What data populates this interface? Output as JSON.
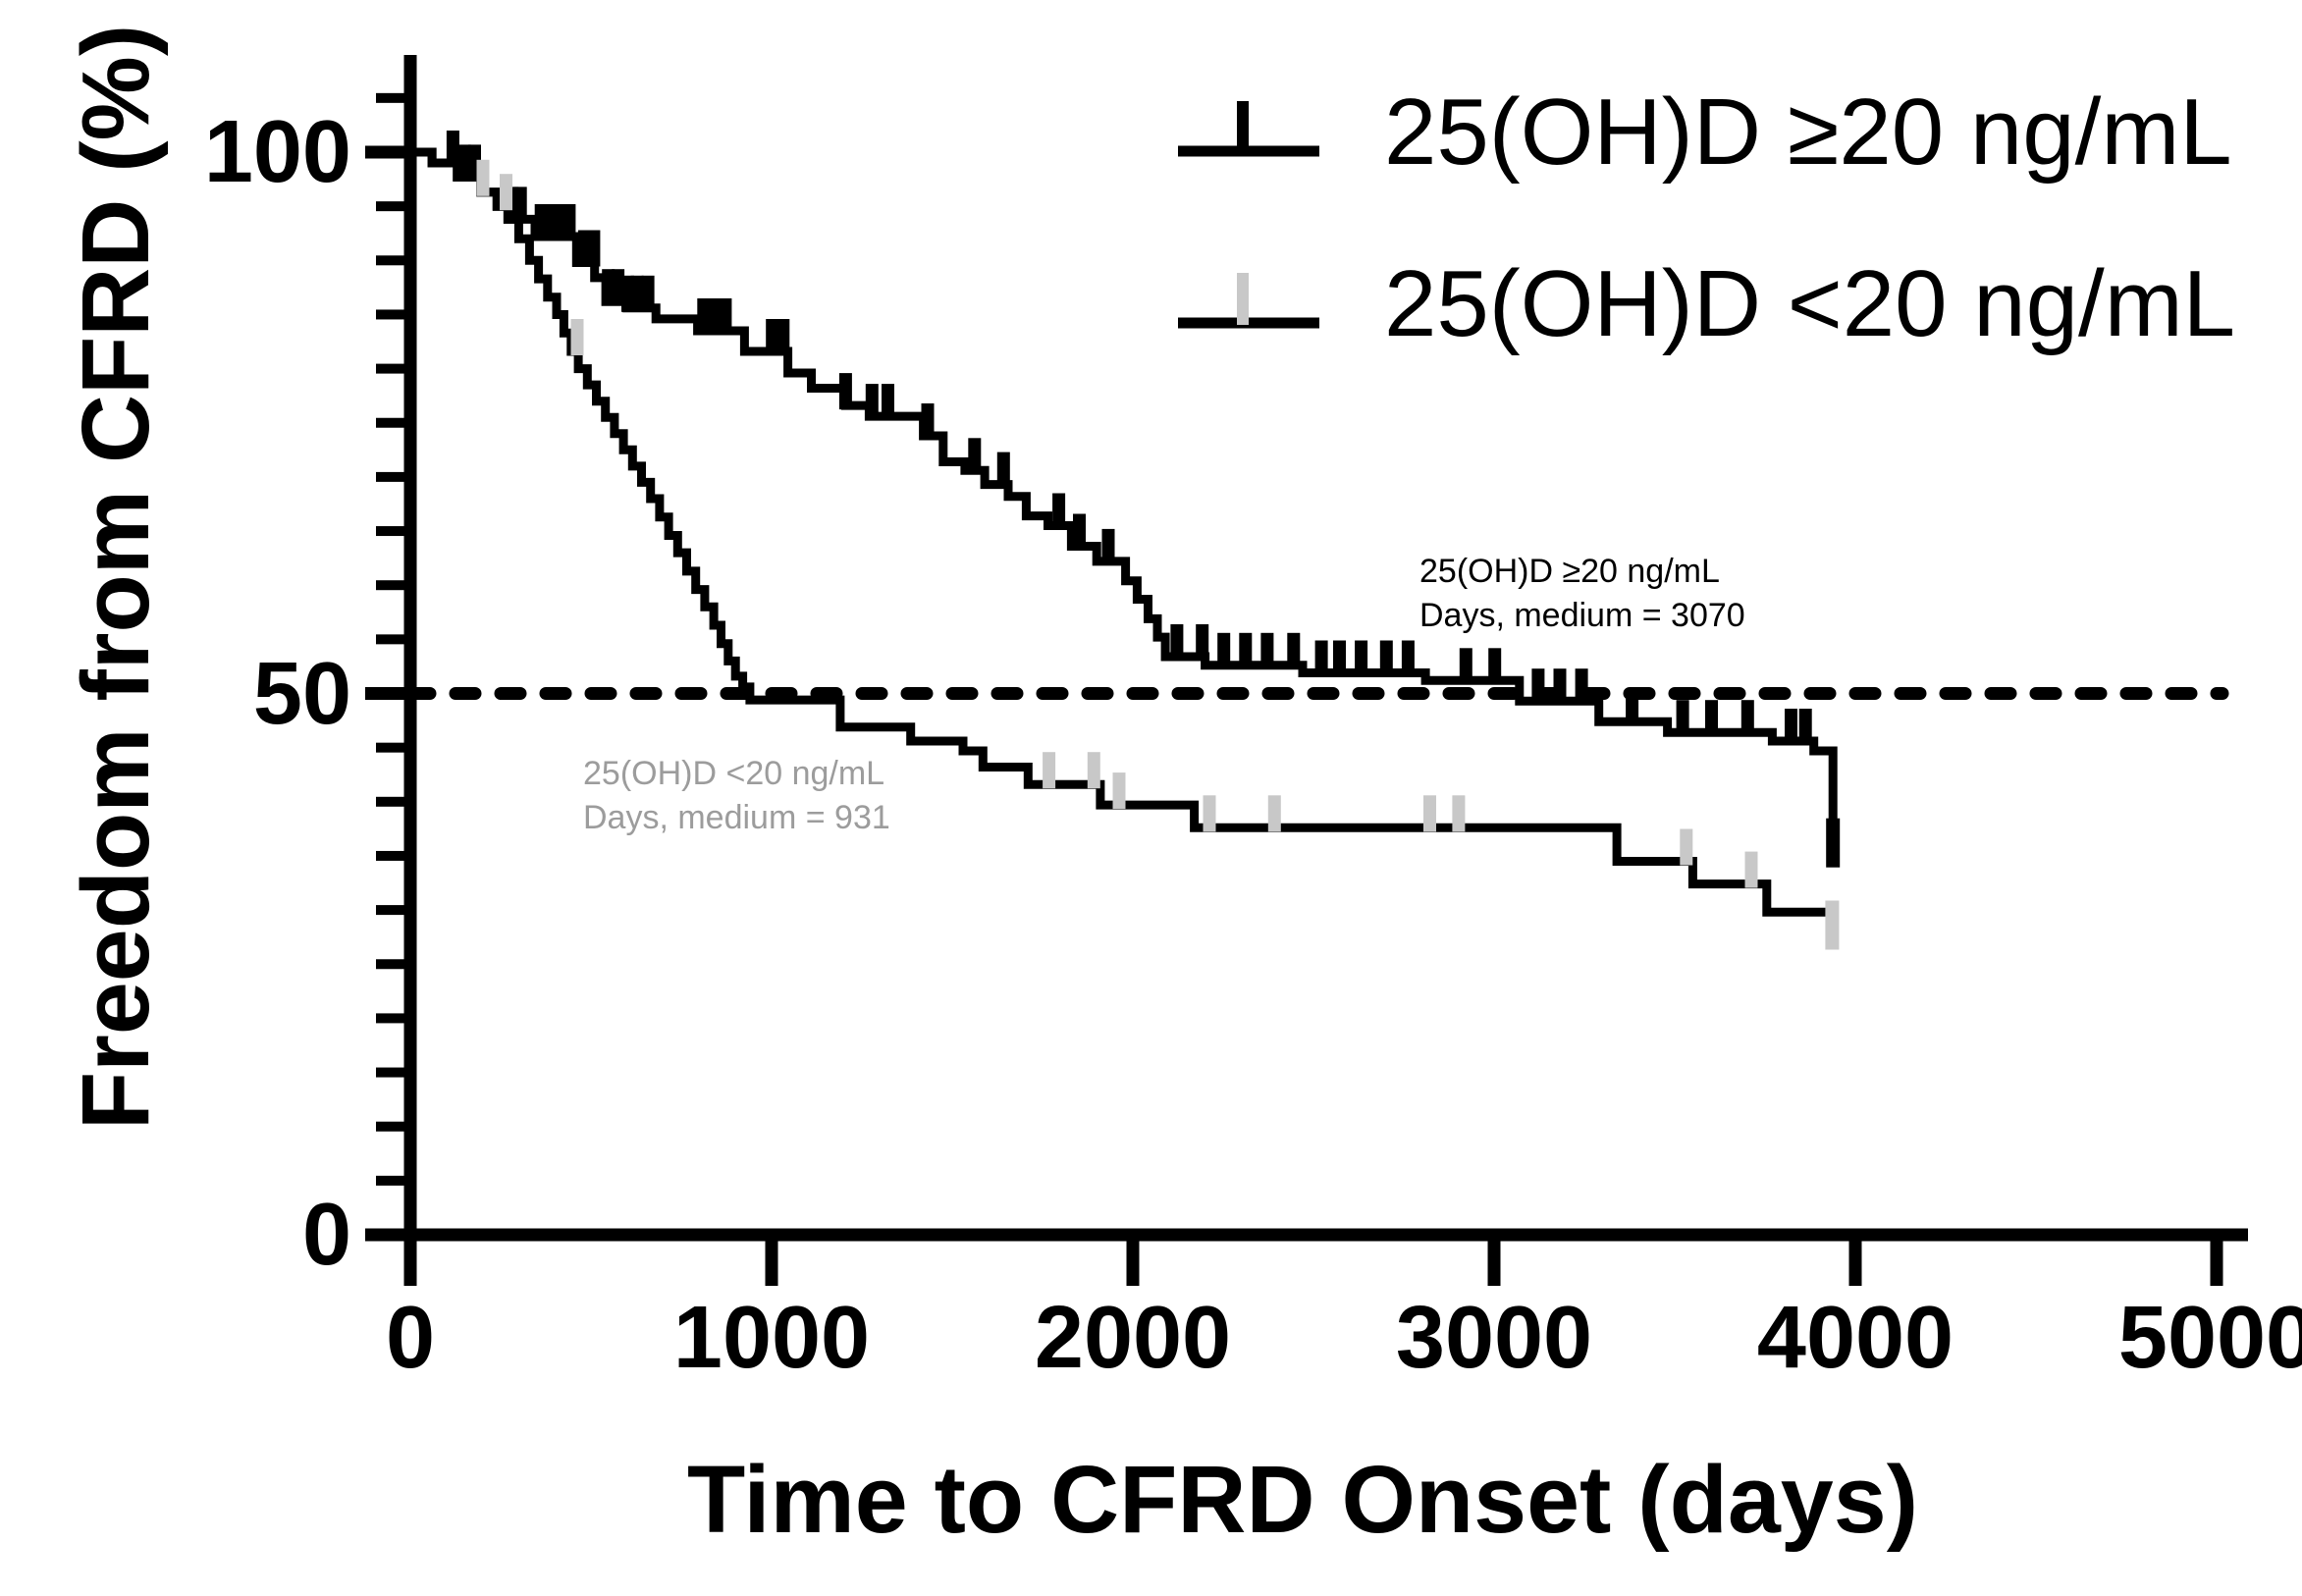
{
  "figure": {
    "background": "#ffffff",
    "y_axis": {
      "title": "Freedom from CFRD (%)",
      "tick_labels": [
        "100",
        "50",
        "0"
      ],
      "tick_values": [
        100,
        50,
        0
      ],
      "minor_tick_values": [
        5,
        10,
        15,
        20,
        25,
        30,
        35,
        40,
        45,
        55,
        60,
        65,
        70,
        75,
        80,
        85,
        90,
        95,
        105
      ],
      "range_pct": [
        0,
        105
      ]
    },
    "x_axis": {
      "title": "Time to CFRD Onset (days)",
      "tick_labels": [
        "0",
        "1000",
        "2000",
        "3000",
        "4000",
        "5000"
      ],
      "tick_values": [
        0,
        1000,
        2000,
        3000,
        4000,
        5000
      ],
      "range_days": [
        0,
        5000
      ]
    },
    "reference_line": {
      "value_pct": 50,
      "style": "dotted",
      "color": "#000000"
    },
    "legend": {
      "items": [
        {
          "label": "25(OH)D ≥20 ng/mL",
          "line_color": "#000000",
          "censor_color": "#000000"
        },
        {
          "label": "25(OH)D <20 ng/mL",
          "line_color": "#000000",
          "censor_color": "#c8c8c8"
        }
      ]
    },
    "annotations": [
      {
        "line1": "25(OH)D ≥20 ng/mL",
        "line2": "Days, medium = 3070",
        "color": "#000000"
      },
      {
        "line1": "25(OH)D <20 ng/mL",
        "line2": "Days, medium = 931",
        "color": "#9c9c9c"
      }
    ]
  },
  "chart_data": {
    "type": "line",
    "subtype": "kaplan_meier_step",
    "title": "",
    "xlabel": "Time to CFRD Onset (days)",
    "ylabel": "Freedom from CFRD (%)",
    "xlim": [
      0,
      5000
    ],
    "ylim": [
      0,
      100
    ],
    "grid": false,
    "legend_position": "top-right",
    "reference_line_pct": 50,
    "medians_days": {
      "ge20": 3070,
      "lt20": 931
    },
    "series": [
      {
        "id": "lt20",
        "name": "25(OH)D <20 ng/mL",
        "color": "#000000",
        "censor_color": "#c8c8c8",
        "steps": [
          [
            0,
            100
          ],
          [
            60,
            99
          ],
          [
            130,
            97.7
          ],
          [
            195,
            96.3
          ],
          [
            240,
            95
          ],
          [
            270,
            93.8
          ],
          [
            300,
            92
          ],
          [
            330,
            90
          ],
          [
            355,
            88.3
          ],
          [
            380,
            86.6
          ],
          [
            405,
            85
          ],
          [
            425,
            83.3
          ],
          [
            445,
            81.6
          ],
          [
            465,
            80
          ],
          [
            490,
            78.5
          ],
          [
            515,
            77
          ],
          [
            540,
            75.5
          ],
          [
            565,
            74
          ],
          [
            590,
            72.5
          ],
          [
            615,
            71
          ],
          [
            640,
            69.5
          ],
          [
            665,
            68
          ],
          [
            690,
            66.3
          ],
          [
            715,
            64.6
          ],
          [
            740,
            63
          ],
          [
            765,
            61.3
          ],
          [
            790,
            59.6
          ],
          [
            815,
            58
          ],
          [
            840,
            56.3
          ],
          [
            860,
            54.6
          ],
          [
            880,
            53
          ],
          [
            900,
            51.6
          ],
          [
            920,
            50.6
          ],
          [
            940,
            49.4
          ],
          [
            1190,
            46.9
          ],
          [
            1385,
            45.6
          ],
          [
            1530,
            44.7
          ],
          [
            1585,
            43.2
          ],
          [
            1710,
            41.6
          ],
          [
            1910,
            39.7
          ],
          [
            2170,
            37.6
          ],
          [
            3340,
            34.5
          ],
          [
            3550,
            32.4
          ],
          [
            3755,
            29.8
          ]
        ],
        "end_day": 3945,
        "censor_days": [
          201,
          265,
          462,
          1768,
          1892,
          1962,
          2212,
          2392,
          2822,
          2902,
          3532,
          3712
        ],
        "end_censor": {
          "day": 3936,
          "pct": 28.6
        }
      },
      {
        "id": "ge20",
        "name": "25(OH)D ≥20 ng/mL",
        "color": "#000000",
        "censor_color": "#000000",
        "steps": [
          [
            0,
            100
          ],
          [
            60,
            99
          ],
          [
            130,
            97.7
          ],
          [
            195,
            96.3
          ],
          [
            240,
            95
          ],
          [
            270,
            93.8
          ],
          [
            345,
            92.2
          ],
          [
            460,
            89.8
          ],
          [
            510,
            88.4
          ],
          [
            541,
            86.2
          ],
          [
            600,
            85.6
          ],
          [
            680,
            84.6
          ],
          [
            795,
            83.5
          ],
          [
            925,
            81.6
          ],
          [
            1045,
            79.6
          ],
          [
            1110,
            78.2
          ],
          [
            1205,
            76.6
          ],
          [
            1270,
            75.6
          ],
          [
            1420,
            73.8
          ],
          [
            1475,
            71.4
          ],
          [
            1535,
            70.6
          ],
          [
            1590,
            69.3
          ],
          [
            1655,
            68.2
          ],
          [
            1705,
            66.4
          ],
          [
            1765,
            65.5
          ],
          [
            1830,
            63.6
          ],
          [
            1900,
            62.2
          ],
          [
            1980,
            60.4
          ],
          [
            2012,
            58.7
          ],
          [
            2042,
            56.9
          ],
          [
            2068,
            55.2
          ],
          [
            2090,
            53.4
          ],
          [
            2200,
            52.6
          ],
          [
            2470,
            51.9
          ],
          [
            2810,
            51.2
          ],
          [
            3070,
            49.3
          ],
          [
            3290,
            47.4
          ],
          [
            3480,
            46.4
          ],
          [
            3770,
            45.6
          ],
          [
            3885,
            44.7
          ],
          [
            3938,
            35.8
          ]
        ],
        "end_day": 3950,
        "censor_days": [
          118,
          150,
          178,
          282,
          305,
          362,
          388,
          414,
          440,
          482,
          508,
          548,
          575,
          602,
          628,
          658,
          812,
          842,
          872,
          1002,
          1032,
          1205,
          1278,
          1322,
          1432,
          1562,
          1642,
          1795,
          1852,
          1932,
          2122,
          2192,
          2252,
          2312,
          2372,
          2445,
          2522,
          2572,
          2632,
          2702,
          2762,
          2922,
          3002,
          3122,
          3182,
          3242,
          3382,
          3522,
          3602,
          3702,
          3822,
          3862
        ],
        "end_censor": {
          "day": 3938,
          "pct": 36.2
        }
      }
    ]
  }
}
